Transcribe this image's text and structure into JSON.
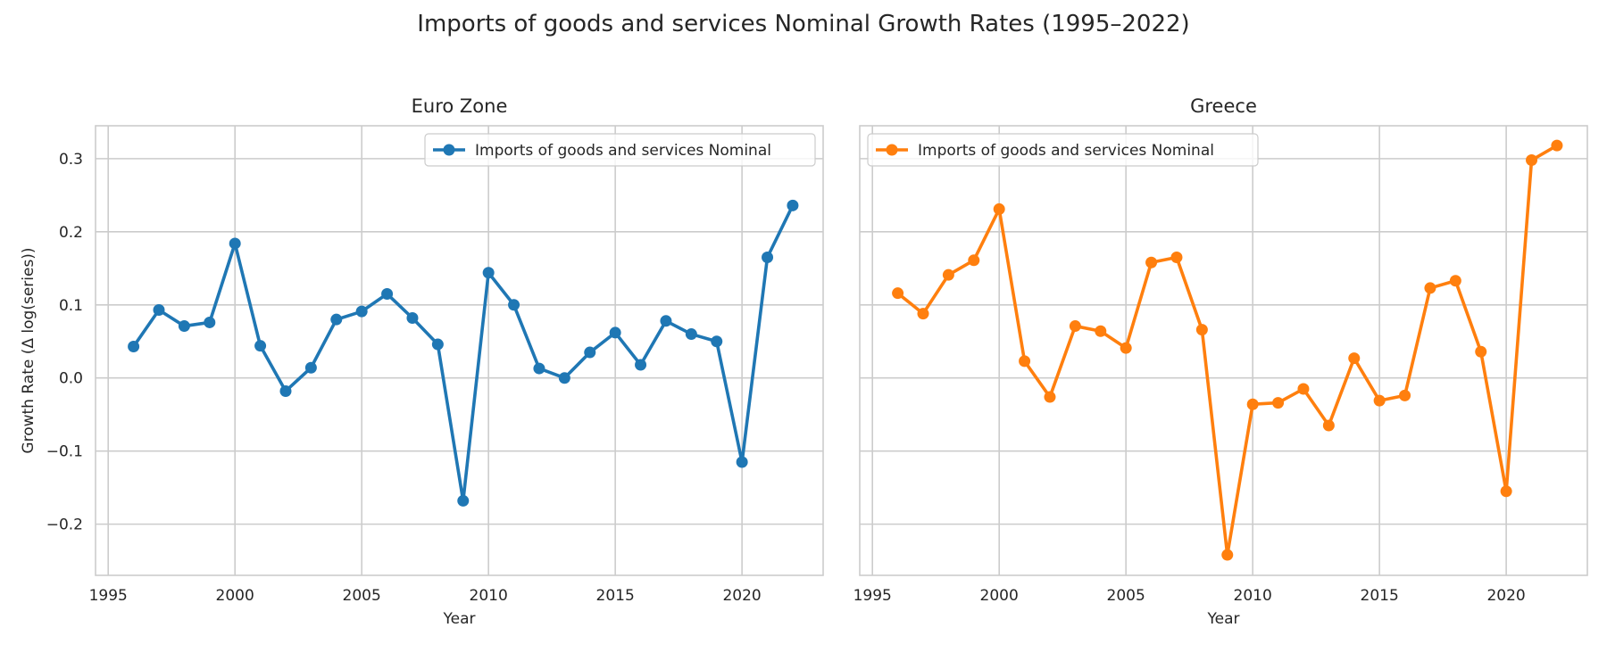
{
  "chart_data": {
    "type": "line",
    "title": "Imports of goods and services Nominal Growth Rates (1995–2022)",
    "ylabel": "Growth Rate (Δ log(series))",
    "ylim": [
      -0.27,
      0.345
    ],
    "xlim": [
      1994.5,
      2023.2
    ],
    "grid": true,
    "y_ticks": [
      -0.2,
      -0.1,
      0.0,
      0.1,
      0.2,
      0.3
    ],
    "y_tick_labels": [
      "−0.2",
      "−0.1",
      "0.0",
      "0.1",
      "0.2",
      "0.3"
    ],
    "x_ticks": [
      1995,
      2000,
      2005,
      2010,
      2015,
      2020
    ],
    "x_tick_labels": [
      "1995",
      "2000",
      "2005",
      "2010",
      "2015",
      "2020"
    ],
    "panels": [
      {
        "title": "Euro Zone",
        "xlabel": "Year",
        "legend_position": "upper right",
        "color": "#1f77b4",
        "series": [
          {
            "name": "Imports of goods and services Nominal",
            "x": [
              1996,
              1997,
              1998,
              1999,
              2000,
              2001,
              2002,
              2003,
              2004,
              2005,
              2006,
              2007,
              2008,
              2009,
              2010,
              2011,
              2012,
              2013,
              2014,
              2015,
              2016,
              2017,
              2018,
              2019,
              2020,
              2021,
              2022
            ],
            "y": [
              0.043,
              0.093,
              0.071,
              0.076,
              0.184,
              0.044,
              -0.018,
              0.014,
              0.08,
              0.091,
              0.115,
              0.082,
              0.046,
              -0.168,
              0.144,
              0.1,
              0.013,
              0.0,
              0.035,
              0.062,
              0.018,
              0.078,
              0.06,
              0.05,
              -0.115,
              0.165,
              0.236
            ]
          }
        ]
      },
      {
        "title": "Greece",
        "xlabel": "Year",
        "legend_position": "upper left",
        "color": "#ff7f0e",
        "series": [
          {
            "name": "Imports of goods and services Nominal",
            "x": [
              1996,
              1997,
              1998,
              1999,
              2000,
              2001,
              2002,
              2003,
              2004,
              2005,
              2006,
              2007,
              2008,
              2009,
              2010,
              2011,
              2012,
              2013,
              2014,
              2015,
              2016,
              2017,
              2018,
              2019,
              2020,
              2021,
              2022
            ],
            "y": [
              0.116,
              0.088,
              0.141,
              0.161,
              0.231,
              0.023,
              -0.026,
              0.071,
              0.064,
              0.041,
              0.158,
              0.165,
              0.066,
              -0.242,
              -0.036,
              -0.034,
              -0.015,
              -0.065,
              0.027,
              -0.031,
              -0.024,
              0.123,
              0.133,
              0.036,
              -0.155,
              0.298,
              0.318
            ]
          }
        ]
      }
    ]
  }
}
